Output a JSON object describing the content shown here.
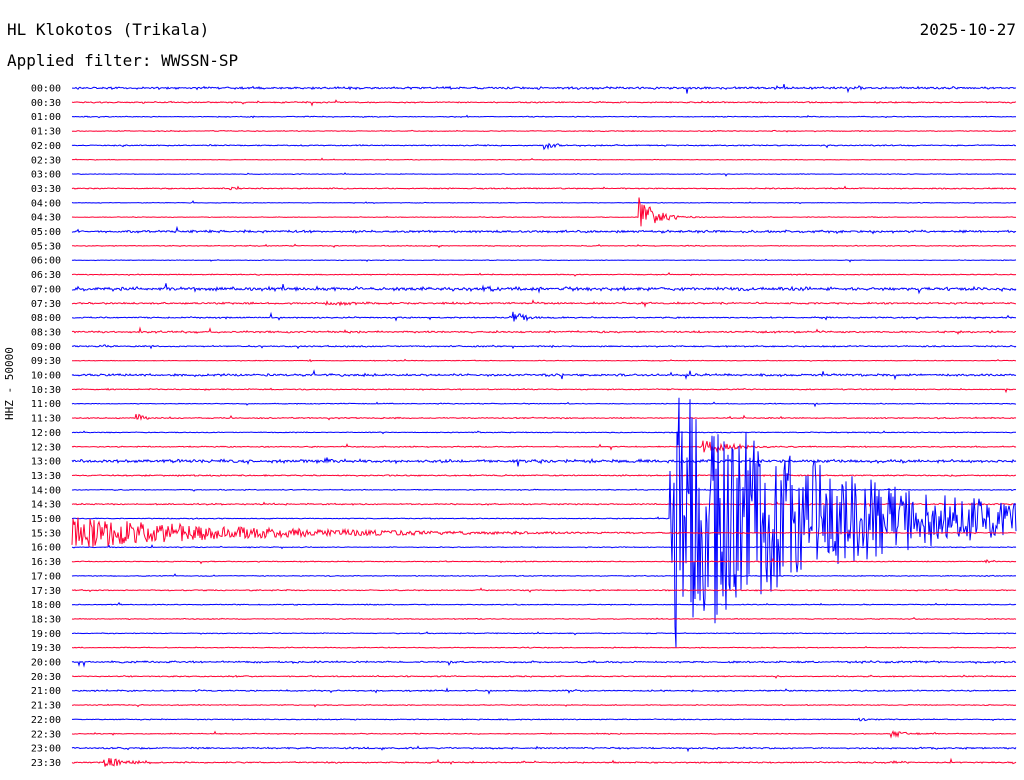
{
  "header": {
    "station": "HL Klokotos (Trikala)",
    "date": "2025-10-27",
    "filter": "Applied filter: WWSSN-SP"
  },
  "chart_data": {
    "type": "line",
    "title": "HL Klokotos (Trikala)",
    "subtitle": "Applied filter: WWSSN-SP",
    "ylabel": "HHZ - 50000",
    "xlabel": "",
    "colors": {
      "even_trace": "#0000ff",
      "odd_trace": "#ff0033"
    },
    "rows": [
      "00:00",
      "00:30",
      "01:00",
      "01:30",
      "02:00",
      "02:30",
      "03:00",
      "03:30",
      "04:00",
      "04:30",
      "05:00",
      "05:30",
      "06:00",
      "06:30",
      "07:00",
      "07:30",
      "08:00",
      "08:30",
      "09:00",
      "09:30",
      "10:00",
      "10:30",
      "11:00",
      "11:30",
      "12:00",
      "12:30",
      "13:00",
      "13:30",
      "14:00",
      "14:30",
      "15:00",
      "15:30",
      "16:00",
      "16:30",
      "17:00",
      "17:30",
      "18:00",
      "18:30",
      "19:00",
      "19:30",
      "20:00",
      "20:30",
      "21:00",
      "21:30",
      "22:00",
      "22:30",
      "23:00",
      "23:30"
    ],
    "x_range_minutes": [
      0,
      30
    ],
    "noise_level": [
      1,
      0.6,
      0.4,
      0.4,
      0.5,
      0.3,
      0.3,
      0.5,
      0.3,
      0.3,
      1,
      0.4,
      0.3,
      0.4,
      1.6,
      0.8,
      0.6,
      0.8,
      0.6,
      0.3,
      1,
      0.5,
      0.4,
      0.5,
      0.4,
      0.5,
      1.4,
      0.6,
      0.4,
      0.6,
      0.4,
      0.4,
      0.4,
      0.4,
      0.4,
      0.5,
      0.4,
      0.4,
      0.4,
      0.4,
      0.8,
      0.5,
      0.6,
      0.4,
      0.4,
      0.4,
      0.7,
      0.6
    ],
    "events": [
      {
        "time": "00:25",
        "amplitude": 3,
        "duration_min": 0.5
      },
      {
        "time": "02:15",
        "amplitude": 4,
        "duration_min": 0.8
      },
      {
        "time": "03:35",
        "amplitude": 2,
        "duration_min": 0.4
      },
      {
        "time": "04:48",
        "amplitude": 22,
        "duration_min": 1.1
      },
      {
        "time": "07:13",
        "amplitude": 5,
        "duration_min": 0.8
      },
      {
        "time": "07:38",
        "amplitude": 2,
        "duration_min": 2.5
      },
      {
        "time": "08:14",
        "amplitude": 6,
        "duration_min": 1
      },
      {
        "time": "09:01",
        "amplitude": 2,
        "duration_min": 0.5
      },
      {
        "time": "11:32",
        "amplitude": 7,
        "duration_min": 0.4
      },
      {
        "time": "12:50",
        "amplitude": 9,
        "duration_min": 1.8
      },
      {
        "time": "13:08",
        "amplitude": 3,
        "duration_min": 0.6
      },
      {
        "time": "15:19",
        "amplitude": 140,
        "duration_min": 11.5
      },
      {
        "time": "16:59",
        "amplitude": 3,
        "duration_min": 0.2
      },
      {
        "time": "20:07",
        "amplitude": 2,
        "duration_min": 0.6
      },
      {
        "time": "21:04",
        "amplitude": 2,
        "duration_min": 0.4
      },
      {
        "time": "22:25",
        "amplitude": 2,
        "duration_min": 0.7
      },
      {
        "time": "22:56",
        "amplitude": 4,
        "duration_min": 1.2
      },
      {
        "time": "23:31",
        "amplitude": 6,
        "duration_min": 1.4
      },
      {
        "time": "23:56",
        "amplitude": 3,
        "duration_min": 0.7
      }
    ]
  }
}
